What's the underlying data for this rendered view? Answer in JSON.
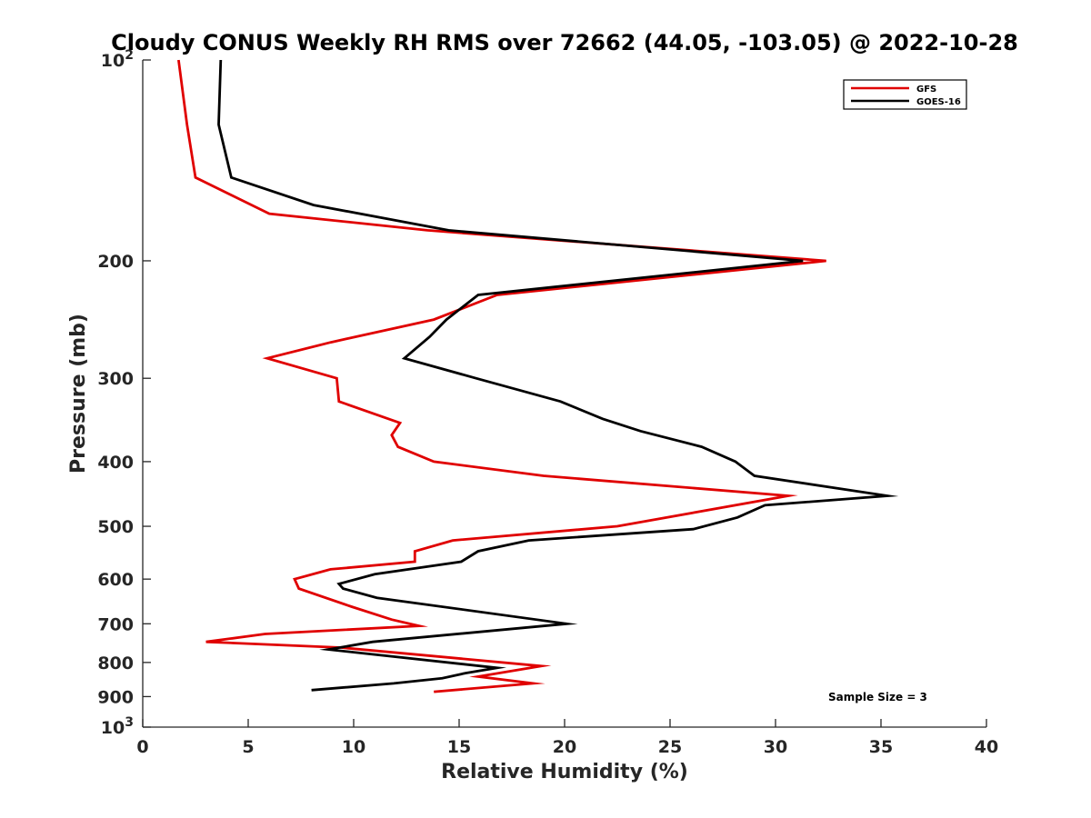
{
  "chart_data": {
    "type": "line",
    "title": "Cloudy CONUS Weekly RH RMS over 72662 (44.05, -103.05) @ 2022-10-28",
    "xlabel": "Relative Humidity (%)",
    "ylabel": "Pressure (mb)",
    "xlim": [
      0,
      40
    ],
    "ylim": [
      100,
      1000
    ],
    "y_scale": "log",
    "y_reversed": true,
    "x_ticks": [
      0,
      5,
      10,
      15,
      20,
      25,
      30,
      35,
      40
    ],
    "y_ticks": [
      {
        "value": 100,
        "label": "10",
        "sup": "2"
      },
      {
        "value": 200,
        "label": "200"
      },
      {
        "value": 300,
        "label": "300"
      },
      {
        "value": 400,
        "label": "400"
      },
      {
        "value": 500,
        "label": "500"
      },
      {
        "value": 600,
        "label": "600"
      },
      {
        "value": 700,
        "label": "700"
      },
      {
        "value": 800,
        "label": "800"
      },
      {
        "value": 900,
        "label": "900"
      },
      {
        "value": 1000,
        "label": "10",
        "sup": "3"
      }
    ],
    "grid": false,
    "legend_position": "top-right",
    "annotation": "Sample Size = 3",
    "series": [
      {
        "name": "GFS",
        "color": "#e00000",
        "points": [
          [
            1.7,
            100
          ],
          [
            2.1,
            125
          ],
          [
            2.5,
            150
          ],
          [
            6.0,
            170
          ],
          [
            13.5,
            180
          ],
          [
            32.4,
            200
          ],
          [
            16.8,
            225
          ],
          [
            13.8,
            245
          ],
          [
            8.9,
            265
          ],
          [
            5.9,
            280
          ],
          [
            9.2,
            300
          ],
          [
            9.3,
            325
          ],
          [
            12.2,
            350
          ],
          [
            11.8,
            365
          ],
          [
            12.1,
            380
          ],
          [
            13.8,
            400
          ],
          [
            19.0,
            420
          ],
          [
            30.6,
            450
          ],
          [
            22.5,
            500
          ],
          [
            14.7,
            525
          ],
          [
            12.9,
            545
          ],
          [
            12.9,
            565
          ],
          [
            8.9,
            580
          ],
          [
            7.2,
            600
          ],
          [
            7.4,
            620
          ],
          [
            9.9,
            660
          ],
          [
            11.8,
            690
          ],
          [
            13.1,
            705
          ],
          [
            5.8,
            725
          ],
          [
            3.0,
            745
          ],
          [
            9.4,
            760
          ],
          [
            18.9,
            810
          ],
          [
            15.9,
            840
          ],
          [
            18.5,
            860
          ],
          [
            13.8,
            885
          ]
        ]
      },
      {
        "name": "GOES-16",
        "color": "#000000",
        "points": [
          [
            3.7,
            100
          ],
          [
            3.6,
            125
          ],
          [
            4.2,
            150
          ],
          [
            8.1,
            165
          ],
          [
            14.5,
            180
          ],
          [
            31.3,
            200
          ],
          [
            15.9,
            225
          ],
          [
            14.4,
            245
          ],
          [
            13.6,
            260
          ],
          [
            12.4,
            280
          ],
          [
            15.8,
            300
          ],
          [
            19.8,
            325
          ],
          [
            21.8,
            345
          ],
          [
            23.6,
            360
          ],
          [
            26.5,
            380
          ],
          [
            28.1,
            400
          ],
          [
            29.0,
            420
          ],
          [
            35.3,
            450
          ],
          [
            29.5,
            465
          ],
          [
            28.2,
            485
          ],
          [
            26.1,
            505
          ],
          [
            18.3,
            525
          ],
          [
            15.9,
            545
          ],
          [
            15.1,
            565
          ],
          [
            11.0,
            590
          ],
          [
            9.3,
            610
          ],
          [
            9.5,
            620
          ],
          [
            11.1,
            640
          ],
          [
            20.1,
            700
          ],
          [
            10.9,
            745
          ],
          [
            8.8,
            765
          ],
          [
            16.8,
            815
          ],
          [
            15.3,
            830
          ],
          [
            14.2,
            845
          ],
          [
            11.9,
            860
          ],
          [
            8.0,
            880
          ]
        ]
      }
    ]
  }
}
